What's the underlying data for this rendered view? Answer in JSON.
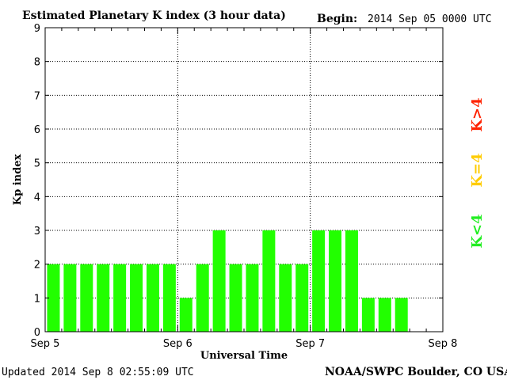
{
  "header": {
    "title": "Estimated Planetary K index (3 hour data)",
    "begin_label": "Begin:",
    "begin_value": "2014 Sep 05 0000 UTC"
  },
  "footer": {
    "updated": "Updated 2014 Sep  8 02:55:09 UTC",
    "source": "NOAA/SWPC Boulder, CO USA"
  },
  "legend": [
    {
      "label": "K>4",
      "color": "#ff2200"
    },
    {
      "label": "K=4",
      "color": "#ffcc00"
    },
    {
      "label": "K<4",
      "color": "#22ee22"
    }
  ],
  "chart_data": {
    "type": "bar",
    "title": "Estimated Planetary K index (3 hour data)",
    "xlabel": "Universal Time",
    "ylabel": "Kp index",
    "ylim": [
      0,
      9
    ],
    "yticks": [
      0,
      1,
      2,
      3,
      4,
      5,
      6,
      7,
      8,
      9
    ],
    "xtick_labels": [
      "Sep 5",
      "Sep 6",
      "Sep 7",
      "Sep 8"
    ],
    "interval_hours": 3,
    "grid": true,
    "bar_color": "#22ff00",
    "values": [
      2,
      2,
      2,
      2,
      2,
      2,
      2,
      2,
      1,
      2,
      3,
      2,
      2,
      3,
      2,
      2,
      3,
      3,
      3,
      1,
      1,
      1
    ]
  }
}
